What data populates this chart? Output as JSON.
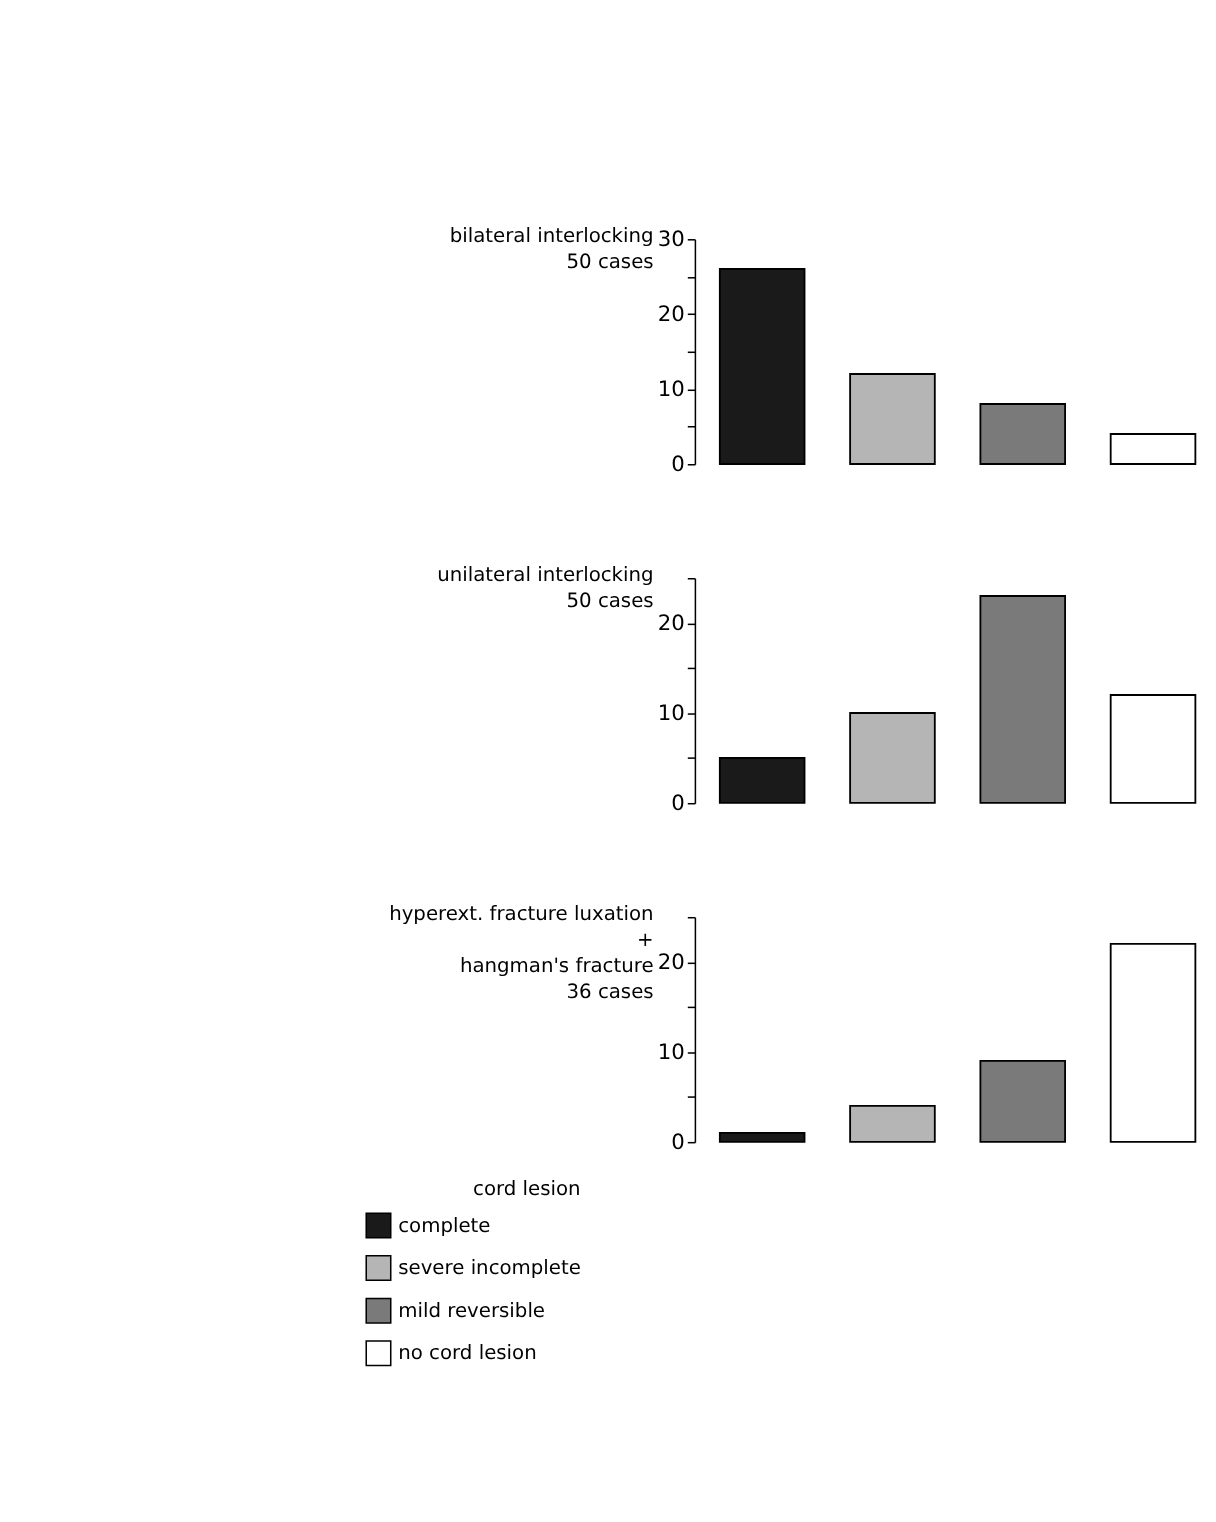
{
  "chart_data": [
    {
      "type": "bar",
      "title": "bilateral interlocking",
      "subtitle": "50 cases",
      "categories": [
        null,
        null,
        null,
        null
      ],
      "values": [
        26,
        12,
        8,
        4
      ],
      "colors": [
        "#1a1a1a",
        "#b5b5b5",
        "#7a7a7a",
        "#ffffff"
      ],
      "ylim": [
        0,
        30
      ],
      "yticks": [
        0,
        {
          "value": 5,
          "label": null
        },
        10,
        {
          "value": 15,
          "label": null
        },
        20,
        {
          "value": 25,
          "label": null
        },
        30
      ],
      "tick_labels": "y",
      "grid": false,
      "legend": false
    },
    {
      "type": "bar",
      "title": "unilateral interlocking",
      "subtitle": "50 cases",
      "categories": [
        null,
        null,
        null,
        null
      ],
      "values": [
        5,
        10,
        23,
        12
      ],
      "colors": [
        "#1a1a1a",
        "#b5b5b5",
        "#7a7a7a",
        "#ffffff"
      ],
      "ylim": [
        0,
        25
      ],
      "yticks": [
        0,
        {
          "value": 5,
          "label": null
        },
        10,
        {
          "value": 15,
          "label": null
        },
        20,
        {
          "value": 25,
          "label": null
        }
      ],
      "tick_labels": "y",
      "grid": false,
      "legend": false
    },
    {
      "type": "bar",
      "title": "hyperext. fracture luxation\n+\nhangman's fracture",
      "subtitle": "36 cases",
      "categories": [
        null,
        null,
        null,
        null
      ],
      "legend_title": "cord lesion",
      "legend": "bottom left",
      "series": [
        {
          "name": "complete",
          "color": "#1a1a1a",
          "values": [
            1,
            null,
            null,
            null
          ]
        },
        {
          "name": "severe incomplete",
          "color": "#b5b5b5",
          "values": [
            null,
            4,
            null,
            null
          ]
        },
        {
          "name": "mild reversible",
          "color": "#7a7a7a",
          "values": [
            null,
            null,
            9,
            null
          ]
        },
        {
          "name": "no cord lesion",
          "color": "#ffffff",
          "values": [
            null,
            null,
            null,
            22
          ]
        }
      ],
      "ylim": [
        0,
        25
      ],
      "yticks": [
        0,
        {
          "value": 5,
          "label": null
        },
        10,
        {
          "value": 15,
          "label": null
        },
        20,
        {
          "value": 25,
          "label": null
        }
      ],
      "tick_labels": "y",
      "grid": false
    }
  ]
}
